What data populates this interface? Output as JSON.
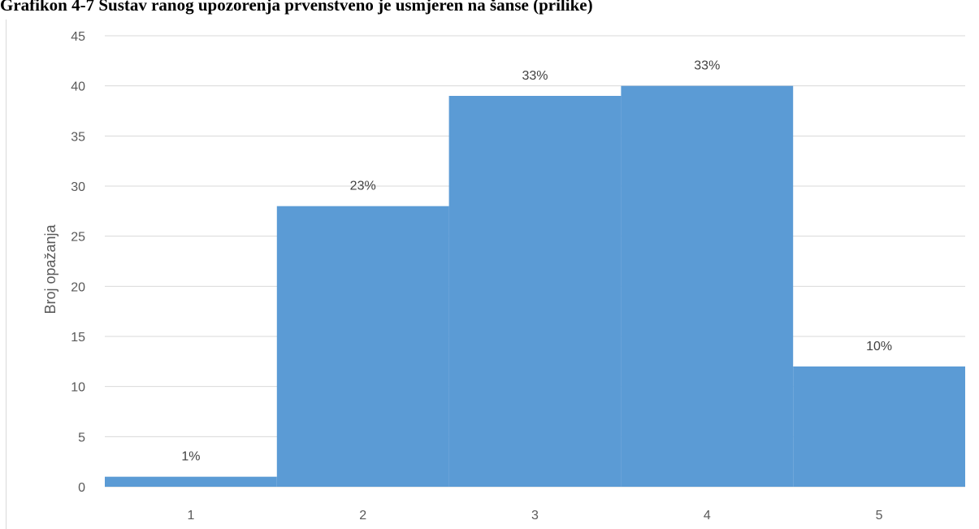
{
  "caption": "Grafikon 4-7 Sustav ranog upozorenja prvenstveno je usmjeren na šanse (prilike)",
  "chart_data": {
    "type": "bar",
    "title": "Grafikon 4-7 Sustav ranog upozorenja prvenstveno je usmjeren na šanse (prilike)",
    "xlabel": "",
    "ylabel": "Broj opažanja",
    "categories": [
      "1",
      "2",
      "3",
      "4",
      "5"
    ],
    "values": [
      1,
      28,
      39,
      40,
      12
    ],
    "data_labels": [
      "1%",
      "23%",
      "33%",
      "33%",
      "10%"
    ],
    "ylim": [
      0,
      45
    ],
    "yticks": [
      0,
      5,
      10,
      15,
      20,
      25,
      30,
      35,
      40,
      45
    ],
    "grid": true,
    "bar_gap": 0,
    "legend": "none",
    "colors": {
      "bar": "#5b9bd5",
      "grid": "#d9d9d9",
      "axis": "#d9d9d9"
    }
  }
}
